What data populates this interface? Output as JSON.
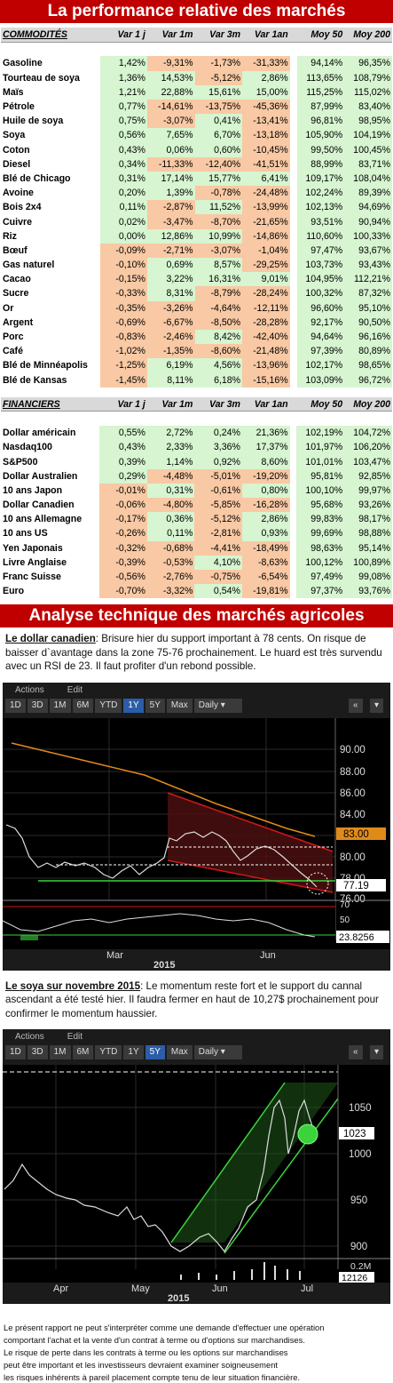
{
  "banner_top": "La performance relative des marchés",
  "headers": [
    "Var 1 j",
    "Var 1m",
    "Var 3m",
    "Var 1an",
    "Moy 50",
    "Moy 200"
  ],
  "commodities_title": "COMMODITÉS",
  "commodities": [
    [
      "Gasoline",
      "1,42%",
      "-9,31%",
      "-1,73%",
      "-31,33%",
      "94,14%",
      "96,35%"
    ],
    [
      "Tourteau de soya",
      "1,36%",
      "14,53%",
      "-5,12%",
      "2,86%",
      "113,65%",
      "108,79%"
    ],
    [
      "Maïs",
      "1,21%",
      "22,88%",
      "15,61%",
      "15,00%",
      "115,25%",
      "115,02%"
    ],
    [
      "Pétrole",
      "0,77%",
      "-14,61%",
      "-13,75%",
      "-45,36%",
      "87,99%",
      "83,40%"
    ],
    [
      "Huile de soya",
      "0,75%",
      "-3,07%",
      "0,41%",
      "-13,41%",
      "96,81%",
      "98,95%"
    ],
    [
      "Soya",
      "0,56%",
      "7,65%",
      "6,70%",
      "-13,18%",
      "105,90%",
      "104,19%"
    ],
    [
      "Coton",
      "0,43%",
      "0,06%",
      "0,60%",
      "-10,45%",
      "99,50%",
      "100,45%"
    ],
    [
      "Diesel",
      "0,34%",
      "-11,33%",
      "-12,40%",
      "-41,51%",
      "88,99%",
      "83,71%"
    ],
    [
      "Blé de Chicago",
      "0,31%",
      "17,14%",
      "15,77%",
      "6,41%",
      "109,17%",
      "108,04%"
    ],
    [
      "Avoine",
      "0,20%",
      "1,39%",
      "-0,78%",
      "-24,48%",
      "102,24%",
      "89,39%"
    ],
    [
      "Bois 2x4",
      "0,11%",
      "-2,87%",
      "11,52%",
      "-13,99%",
      "102,13%",
      "94,69%"
    ],
    [
      "Cuivre",
      "0,02%",
      "-3,47%",
      "-8,70%",
      "-21,65%",
      "93,51%",
      "90,94%"
    ],
    [
      "Riz",
      "0,00%",
      "12,86%",
      "10,99%",
      "-14,86%",
      "110,60%",
      "100,33%"
    ],
    [
      "Bœuf",
      "-0,09%",
      "-2,71%",
      "-3,07%",
      "-1,04%",
      "97,47%",
      "93,67%"
    ],
    [
      "Gas naturel",
      "-0,10%",
      "0,69%",
      "8,57%",
      "-29,25%",
      "103,73%",
      "93,43%"
    ],
    [
      "Cacao",
      "-0,15%",
      "3,22%",
      "16,31%",
      "9,01%",
      "104,95%",
      "112,21%"
    ],
    [
      "Sucre",
      "-0,33%",
      "8,31%",
      "-8,79%",
      "-28,24%",
      "100,32%",
      "87,32%"
    ],
    [
      "Or",
      "-0,35%",
      "-3,26%",
      "-4,64%",
      "-12,11%",
      "96,60%",
      "95,10%"
    ],
    [
      "Argent",
      "-0,69%",
      "-6,67%",
      "-8,50%",
      "-28,28%",
      "92,17%",
      "90,50%"
    ],
    [
      "Porc",
      "-0,83%",
      "-2,46%",
      "8,42%",
      "-42,40%",
      "94,64%",
      "96,16%"
    ],
    [
      "Café",
      "-1,02%",
      "-1,35%",
      "-8,60%",
      "-21,48%",
      "97,39%",
      "80,89%"
    ],
    [
      "Blé de Minnéapolis",
      "-1,25%",
      "6,19%",
      "4,56%",
      "-13,96%",
      "102,17%",
      "98,65%"
    ],
    [
      "Blé de Kansas",
      "-1,45%",
      "8,11%",
      "6,18%",
      "-15,16%",
      "103,09%",
      "96,72%"
    ]
  ],
  "financiers_title": "FINANCIERS",
  "financiers": [
    [
      "Dollar américain",
      "0,55%",
      "2,72%",
      "0,24%",
      "21,36%",
      "102,19%",
      "104,72%"
    ],
    [
      "Nasdaq100",
      "0,43%",
      "2,33%",
      "3,36%",
      "17,37%",
      "101,97%",
      "106,20%"
    ],
    [
      "S&P500",
      "0,39%",
      "1,14%",
      "0,92%",
      "8,60%",
      "101,01%",
      "103,47%"
    ],
    [
      "Dollar Australien",
      "0,29%",
      "-4,48%",
      "-5,01%",
      "-19,20%",
      "95,81%",
      "92,85%"
    ],
    [
      "10 ans Japon",
      "-0,01%",
      "0,31%",
      "-0,61%",
      "0,80%",
      "100,10%",
      "99,97%"
    ],
    [
      "Dollar Canadien",
      "-0,06%",
      "-4,80%",
      "-5,85%",
      "-16,28%",
      "95,68%",
      "93,26%"
    ],
    [
      "10 ans Allemagne",
      "-0,17%",
      "0,36%",
      "-5,12%",
      "2,86%",
      "99,83%",
      "98,17%"
    ],
    [
      "10 ans US",
      "-0,26%",
      "0,11%",
      "-2,81%",
      "0,93%",
      "99,69%",
      "98,88%"
    ],
    [
      "Yen Japonais",
      "-0,32%",
      "-0,68%",
      "-4,41%",
      "-18,49%",
      "98,63%",
      "95,14%"
    ],
    [
      "Livre Anglaise",
      "-0,39%",
      "-0,53%",
      "4,10%",
      "-8,63%",
      "100,12%",
      "100,89%"
    ],
    [
      "Franc Suisse",
      "-0,56%",
      "-2,76%",
      "-0,75%",
      "-6,54%",
      "97,49%",
      "99,08%"
    ],
    [
      "Euro",
      "-0,70%",
      "-3,32%",
      "0,54%",
      "-19,81%",
      "97,37%",
      "93,76%"
    ]
  ],
  "banner_tech": "Analyse technique des marchés agricoles",
  "cad": {
    "title": "Le dollar canadien",
    "text": ": Brisure hier du support important à 78 cents. On risque de baisser d`avantage dans la zone 75-76 prochainement. Le huard est très survendu avec un RSI de 23. Il faut profiter d'un rebond possible."
  },
  "soy": {
    "title": "Le soya sur novembre 2015",
    "text": ": Le momentum reste fort et le support du cannal ascendant a été testé hier. Il faudra fermer en haut de 10,27$ prochainement pour confirmer le momentum haussier."
  },
  "chart1": {
    "toolbar": {
      "actions": "Actions",
      "edit": "Edit",
      "buttons": [
        "1D",
        "3D",
        "1M",
        "6M",
        "YTD",
        "1Y",
        "5Y",
        "Max"
      ],
      "active": "1Y",
      "dropdown": "Daily ▾",
      "arrow": "«",
      "caret": "▾"
    },
    "yticks": [
      "90.00",
      "88.00",
      "86.00",
      "84.00",
      "82.00",
      "80.00",
      "78.00",
      "76.00"
    ],
    "last_orange": "83.00",
    "last_price": "77.19",
    "rsi_ticks": [
      "70",
      "50",
      "30"
    ],
    "rsi_value": "23.8256",
    "months": [
      "Mar",
      "Jun"
    ],
    "year": "2015"
  },
  "chart2": {
    "toolbar": {
      "actions": "Actions",
      "edit": "Edit",
      "buttons": [
        "1D",
        "3D",
        "1M",
        "6M",
        "YTD",
        "1Y",
        "5Y",
        "Max"
      ],
      "active": "5Y",
      "dropdown": "Daily ▾",
      "arrow": "«",
      "caret": "▾"
    },
    "yticks": [
      "1050",
      "1000",
      "950",
      "900"
    ],
    "last_price": "1023",
    "vol_ticks": [
      "0.2M",
      "12126"
    ],
    "months": [
      "Apr",
      "May",
      "Jun",
      "Jul"
    ],
    "year": "2015"
  },
  "disclaimer": [
    "Le présent rapport ne peut s'interpréter comme une demande d'effectuer une opération",
    "comportant l'achat et la vente d'un contrat à terme ou d'options sur marchandises.",
    "Le risque de perte dans les contrats à terme ou les options sur marchandises",
    "peut être important et les investisseurs devraient examiner soigneusement",
    "les risques inhérents à pareil placement compte tenu de leur situation financière."
  ]
}
